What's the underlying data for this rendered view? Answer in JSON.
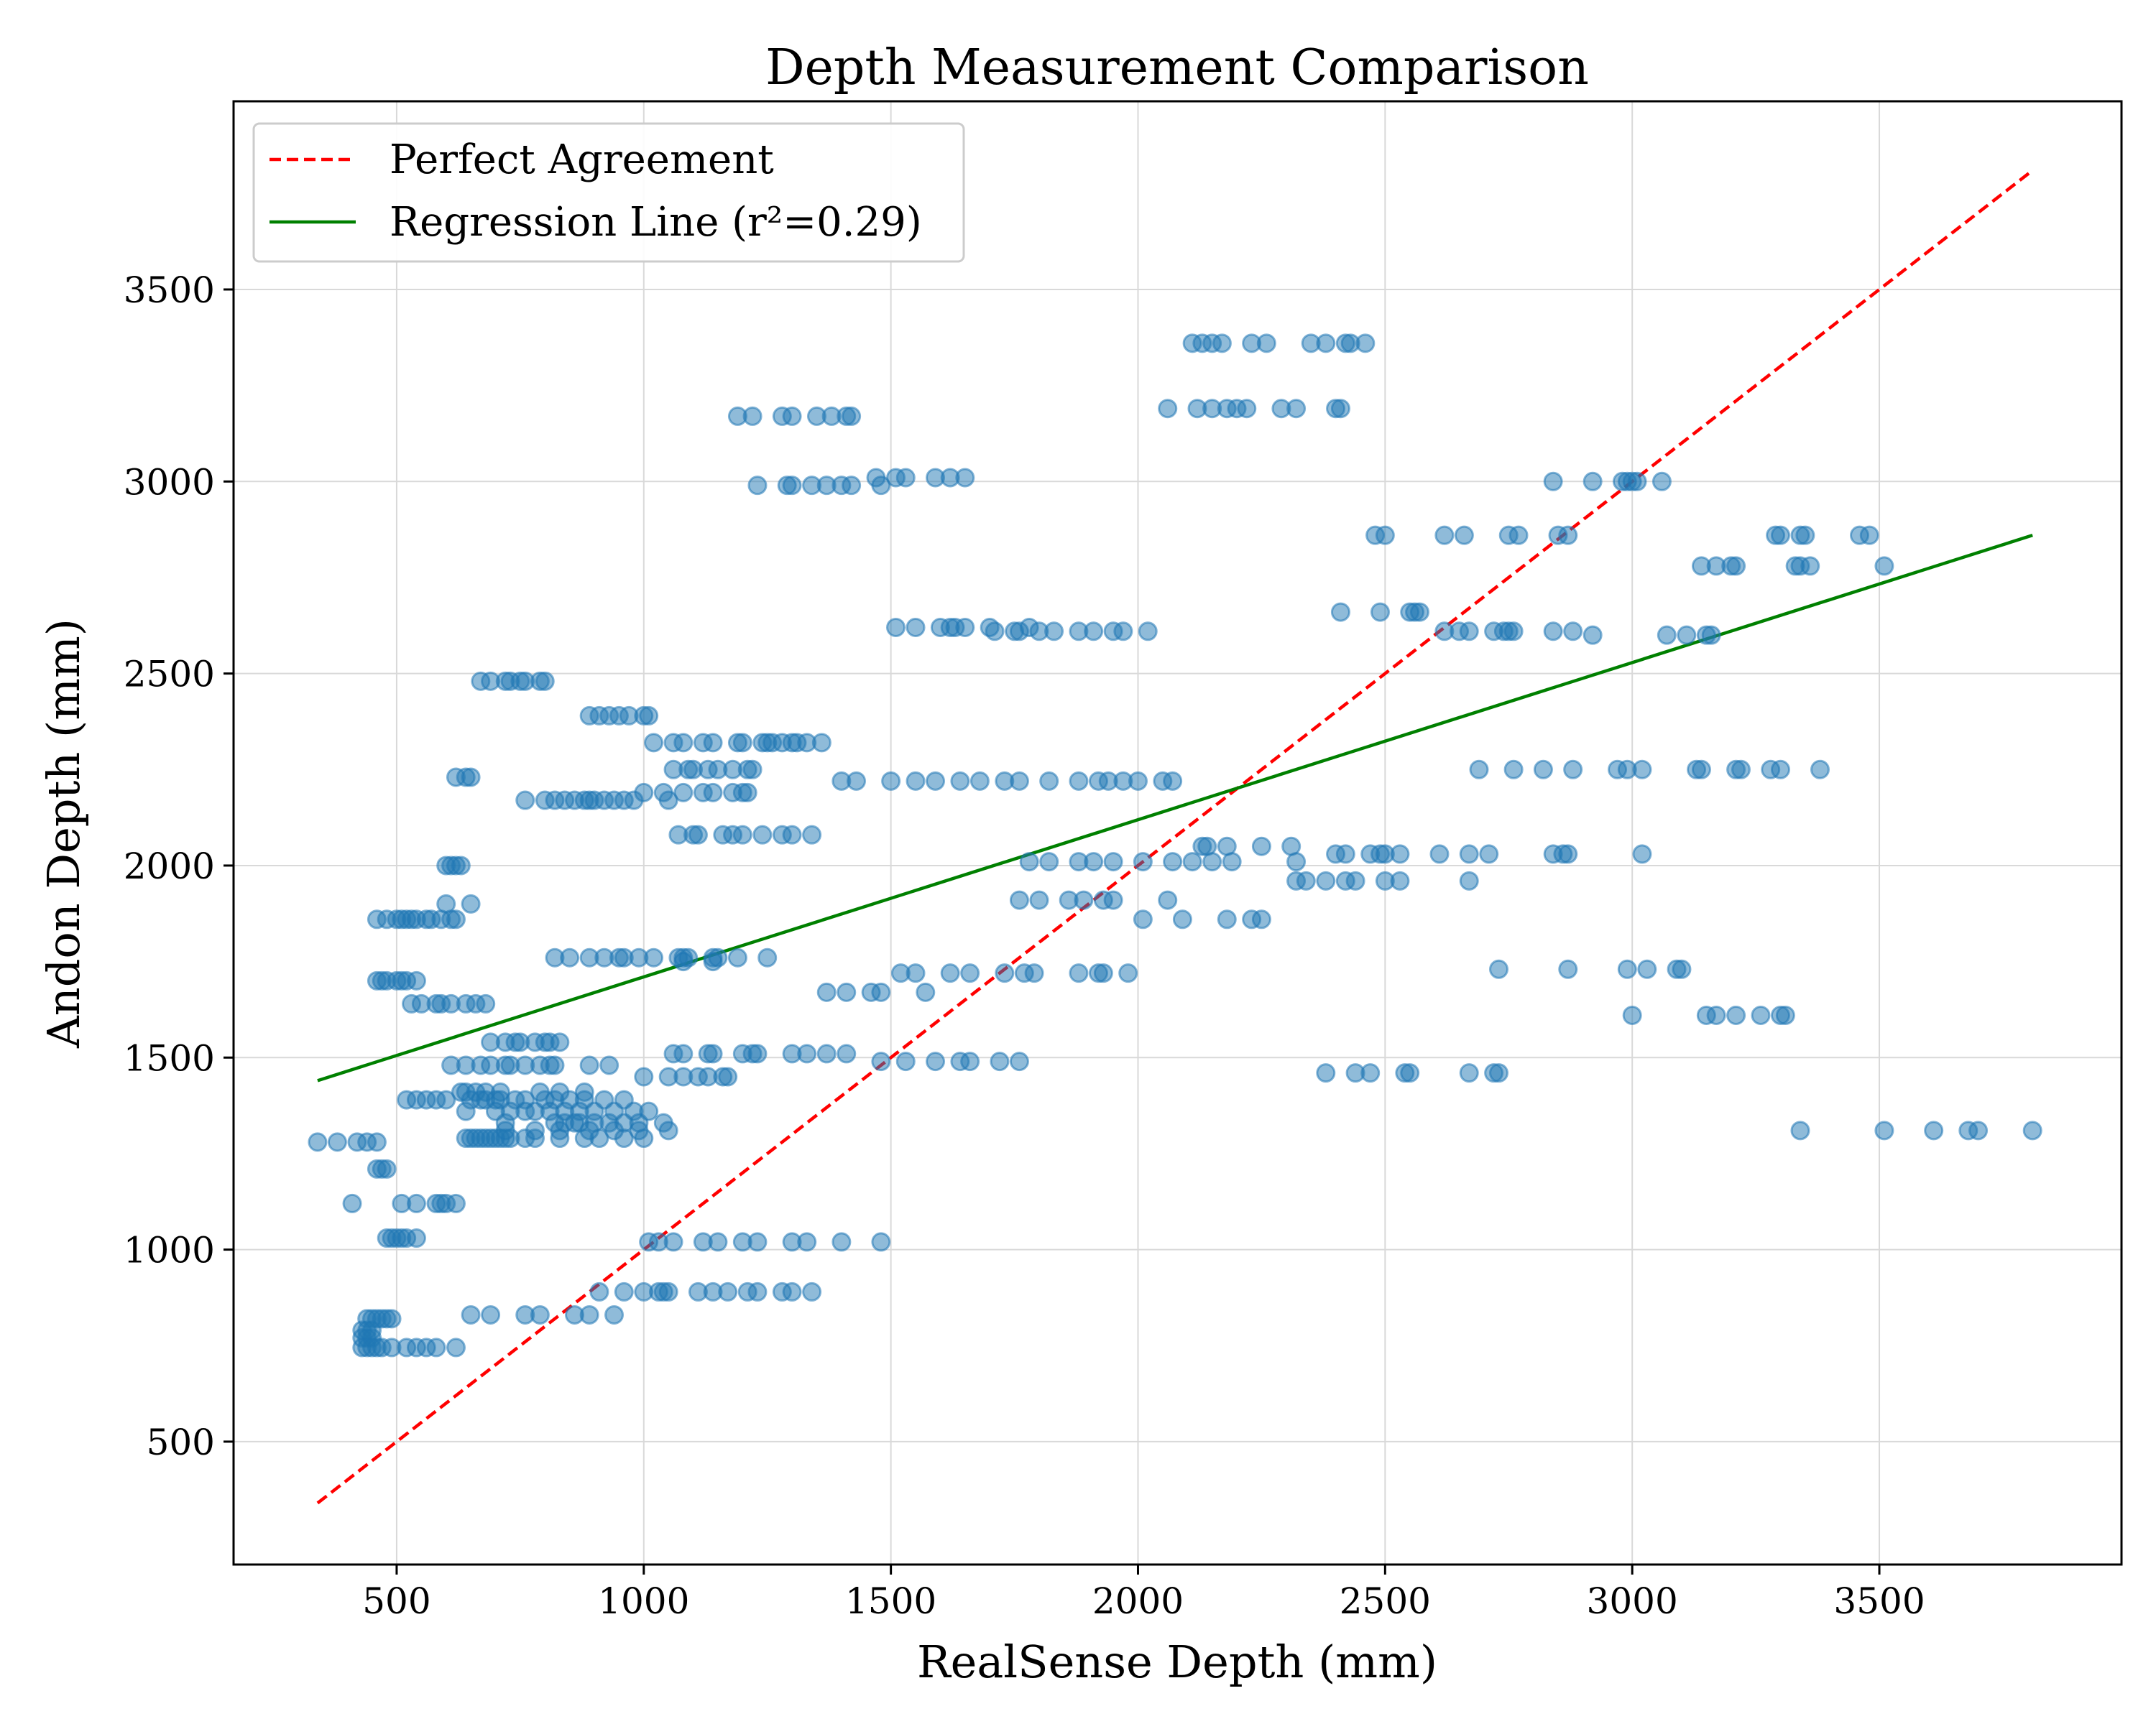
{
  "chart_data": {
    "type": "scatter",
    "title": "Depth Measurement Comparison",
    "xlabel": "RealSense Depth (mm)",
    "ylabel": "Andon Depth (mm)",
    "xlim": [
      170,
      3990
    ],
    "ylim": [
      180,
      3990
    ],
    "x_ticks": [
      500,
      1000,
      1500,
      2000,
      2500,
      3000,
      3500
    ],
    "y_ticks": [
      500,
      1000,
      1500,
      2000,
      2500,
      3000,
      3500
    ],
    "x_tick_labels": [
      "500",
      "1000",
      "1500",
      "2000",
      "2500",
      "3000",
      "3500"
    ],
    "y_tick_labels": [
      "500",
      "1000",
      "1500",
      "2000",
      "2500",
      "3000",
      "3500"
    ],
    "grid": true,
    "legend_position": "top-left",
    "legend": [
      {
        "label": "Perfect Agreement",
        "color": "#ff0000",
        "style": "dashed"
      },
      {
        "label": "Regression Line (r²=0.29)",
        "color": "#008000",
        "style": "solid"
      }
    ],
    "lines": [
      {
        "name": "Perfect Agreement",
        "color": "#ff0000",
        "dash": true,
        "x": [
          340,
          3810
        ],
        "y": [
          340,
          3810
        ]
      },
      {
        "name": "Regression Line (r²=0.29)",
        "color": "#008000",
        "dash": false,
        "x": [
          340,
          3810
        ],
        "y": [
          1440,
          2860
        ]
      }
    ],
    "point_color": "#1f77b4",
    "rows": [
      {
        "y": 3360,
        "x": [
          2110,
          2130,
          2150,
          2170,
          2230,
          2260,
          2350,
          2380,
          2420,
          2430,
          2460
        ]
      },
      {
        "y": 3190,
        "x": [
          2060,
          2120,
          2150,
          2180,
          2200,
          2220,
          2290,
          2320,
          2400,
          2410
        ]
      },
      {
        "y": 3170,
        "x": [
          1190,
          1220,
          1280,
          1300,
          1350,
          1380,
          1410,
          1420
        ]
      },
      {
        "y": 3010,
        "x": [
          1470,
          1510,
          1530,
          1590,
          1620,
          1650
        ]
      },
      {
        "y": 2990,
        "x": [
          1230,
          1290,
          1300,
          1340,
          1370,
          1400,
          1420,
          1480
        ]
      },
      {
        "y": 3000,
        "x": [
          2840,
          2920,
          2980,
          2990,
          3000,
          3010,
          3060
        ]
      },
      {
        "y": 2860,
        "x": [
          2480,
          2500,
          2620,
          2660,
          2750,
          2770,
          2850,
          2870,
          3290,
          3300,
          3340,
          3350,
          3460,
          3480
        ]
      },
      {
        "y": 2780,
        "x": [
          3140,
          3170,
          3200,
          3210,
          3330,
          3340,
          3360,
          3510
        ]
      },
      {
        "y": 2660,
        "x": [
          2410,
          2490,
          2550,
          2560,
          2570
        ]
      },
      {
        "y": 2620,
        "x": [
          1510,
          1550,
          1600,
          1620,
          1630,
          1650,
          1700,
          1780
        ]
      },
      {
        "y": 2610,
        "x": [
          1710,
          1750,
          1760,
          1800,
          1830,
          1880,
          1910,
          1950,
          1970,
          2020,
          2620,
          2650,
          2670,
          2720,
          2740,
          2750,
          2760,
          2840,
          2880
        ]
      },
      {
        "y": 2600,
        "x": [
          2920,
          3070,
          3110,
          3150,
          3160
        ]
      },
      {
        "y": 2480,
        "x": [
          670,
          690,
          720,
          730,
          750,
          760,
          790,
          800
        ]
      },
      {
        "y": 2390,
        "x": [
          890,
          910,
          930,
          950,
          970,
          1000,
          1010
        ]
      },
      {
        "y": 2320,
        "x": [
          1020,
          1060,
          1080,
          1120,
          1140,
          1190,
          1200,
          1240,
          1250,
          1260,
          1280,
          1300,
          1310,
          1330,
          1360
        ]
      },
      {
        "y": 2250,
        "x": [
          1060,
          1090,
          1100,
          1130,
          1150,
          1180,
          1210,
          1220
        ]
      },
      {
        "y": 2230,
        "x": [
          620,
          640,
          650
        ]
      },
      {
        "y": 2220,
        "x": [
          1400,
          1430,
          1500,
          1550,
          1590,
          1640,
          1680,
          1730,
          1760,
          1820,
          1880,
          1920,
          1940,
          1970,
          2000,
          2050,
          2070
        ]
      },
      {
        "y": 2250,
        "x": [
          2690,
          2760,
          2820,
          2880,
          2970,
          2990,
          3020,
          3130,
          3140,
          3210,
          3220,
          3280,
          3300,
          3380
        ]
      },
      {
        "y": 2190,
        "x": [
          1000,
          1040,
          1080,
          1120,
          1140,
          1180,
          1200,
          1210
        ]
      },
      {
        "y": 2170,
        "x": [
          760,
          800,
          820,
          840,
          860,
          880,
          890,
          900,
          920,
          940,
          960,
          980,
          1050
        ]
      },
      {
        "y": 2080,
        "x": [
          1070,
          1100,
          1110,
          1160,
          1180,
          1200,
          1240,
          1280,
          1300,
          1340
        ]
      },
      {
        "y": 2050,
        "x": [
          2130,
          2140,
          2180,
          2250,
          2310
        ]
      },
      {
        "y": 2030,
        "x": [
          2400,
          2420,
          2470,
          2490,
          2500,
          2530,
          2610,
          2670,
          2710,
          2840,
          2860,
          2870,
          3020
        ]
      },
      {
        "y": 2010,
        "x": [
          1780,
          1820,
          1880,
          1910,
          1950,
          2010,
          2070,
          2110,
          2150,
          2190,
          2320
        ]
      },
      {
        "y": 2000,
        "x": [
          600,
          610,
          620,
          630
        ]
      },
      {
        "y": 1960,
        "x": [
          2320,
          2340,
          2380,
          2420,
          2440,
          2500,
          2530,
          2670
        ]
      },
      {
        "y": 1910,
        "x": [
          1760,
          1800,
          1860,
          1890,
          1930,
          1950,
          2060
        ]
      },
      {
        "y": 1900,
        "x": [
          600,
          650
        ]
      },
      {
        "y": 1860,
        "x": [
          460,
          480,
          500,
          510,
          520,
          530,
          540,
          560,
          570,
          590,
          610,
          620
        ]
      },
      {
        "y": 1860,
        "x": [
          2010,
          2090,
          2180,
          2230,
          2250
        ]
      },
      {
        "y": 1760,
        "x": [
          820,
          850,
          890,
          920,
          950,
          960,
          990,
          1020,
          1070,
          1080,
          1090,
          1140,
          1150,
          1190,
          1250
        ]
      },
      {
        "y": 1750,
        "x": [
          1080,
          1140
        ]
      },
      {
        "y": 1730,
        "x": [
          2730,
          2870,
          2990,
          3030,
          3090,
          3100
        ]
      },
      {
        "y": 1720,
        "x": [
          1520,
          1550,
          1620,
          1660,
          1730,
          1770,
          1790,
          1880,
          1920,
          1930,
          1980
        ]
      },
      {
        "y": 1700,
        "x": [
          460,
          470,
          480,
          500,
          510,
          520,
          540
        ]
      },
      {
        "y": 1670,
        "x": [
          1370,
          1410,
          1460,
          1480,
          1570
        ]
      },
      {
        "y": 1640,
        "x": [
          530,
          550,
          580,
          590,
          610,
          640,
          660,
          680
        ]
      },
      {
        "y": 1610,
        "x": [
          3000,
          3150,
          3170,
          3210,
          3260,
          3300,
          3310
        ]
      },
      {
        "y": 1540,
        "x": [
          690,
          720,
          740,
          750,
          780,
          800,
          810,
          830
        ]
      },
      {
        "y": 1510,
        "x": [
          1060,
          1080,
          1130,
          1140,
          1200,
          1220,
          1230,
          1300,
          1330,
          1370,
          1410
        ]
      },
      {
        "y": 1480,
        "x": [
          610,
          640,
          670,
          690,
          720,
          730,
          760,
          790,
          810,
          820,
          890,
          930
        ]
      },
      {
        "y": 1490,
        "x": [
          1480,
          1530,
          1590,
          1640,
          1660,
          1720,
          1760
        ]
      },
      {
        "y": 1460,
        "x": [
          2380,
          2440,
          2470,
          2540,
          2550,
          2670,
          2720,
          2730
        ]
      },
      {
        "y": 1450,
        "x": [
          1000,
          1050,
          1080,
          1110,
          1130,
          1160,
          1170
        ]
      },
      {
        "y": 1410,
        "x": [
          630,
          640,
          660,
          680,
          710,
          790,
          830,
          880
        ]
      },
      {
        "y": 1390,
        "x": [
          520,
          540,
          560,
          580,
          600,
          650,
          670,
          680,
          700,
          710,
          740,
          760,
          800,
          820,
          850,
          880,
          920,
          960
        ]
      },
      {
        "y": 1360,
        "x": [
          640,
          700,
          730,
          760,
          780,
          810,
          840,
          870,
          900,
          940,
          980,
          1010
        ]
      },
      {
        "y": 1330,
        "x": [
          720,
          820,
          840,
          860,
          870,
          900,
          930,
          960,
          990,
          1040
        ]
      },
      {
        "y": 1290,
        "x": [
          640,
          650,
          660,
          670,
          680,
          690,
          700,
          710,
          720,
          730,
          760,
          780,
          830,
          880,
          910,
          960,
          1000
        ]
      },
      {
        "y": 1310,
        "x": [
          720,
          780,
          830,
          890,
          940,
          990,
          1050
        ]
      },
      {
        "y": 1280,
        "x": [
          340,
          380,
          420,
          440,
          460
        ]
      },
      {
        "y": 1310,
        "x": [
          3340,
          3510,
          3610,
          3680,
          3700,
          3810
        ]
      },
      {
        "y": 1210,
        "x": [
          460,
          470,
          480
        ]
      },
      {
        "y": 1120,
        "x": [
          410,
          510,
          540,
          580,
          590,
          600,
          620
        ]
      },
      {
        "y": 1030,
        "x": [
          480,
          490,
          500,
          510,
          520,
          540
        ]
      },
      {
        "y": 1020,
        "x": [
          1010,
          1030,
          1060,
          1120,
          1150,
          1200,
          1230,
          1300,
          1330,
          1400,
          1480
        ]
      },
      {
        "y": 890,
        "x": [
          910,
          960,
          1000,
          1030,
          1040,
          1050,
          1110,
          1140,
          1170,
          1210,
          1230,
          1280,
          1300,
          1340
        ]
      },
      {
        "y": 830,
        "x": [
          650,
          690,
          760,
          790,
          860,
          890,
          940
        ]
      },
      {
        "y": 820,
        "x": [
          440,
          450,
          460,
          470,
          480,
          490
        ]
      },
      {
        "y": 790,
        "x": [
          430,
          440,
          450
        ]
      },
      {
        "y": 770,
        "x": [
          430,
          440,
          450
        ]
      },
      {
        "y": 745,
        "x": [
          430,
          440,
          450,
          460,
          470,
          490,
          520,
          540,
          560,
          580,
          620
        ]
      }
    ]
  }
}
